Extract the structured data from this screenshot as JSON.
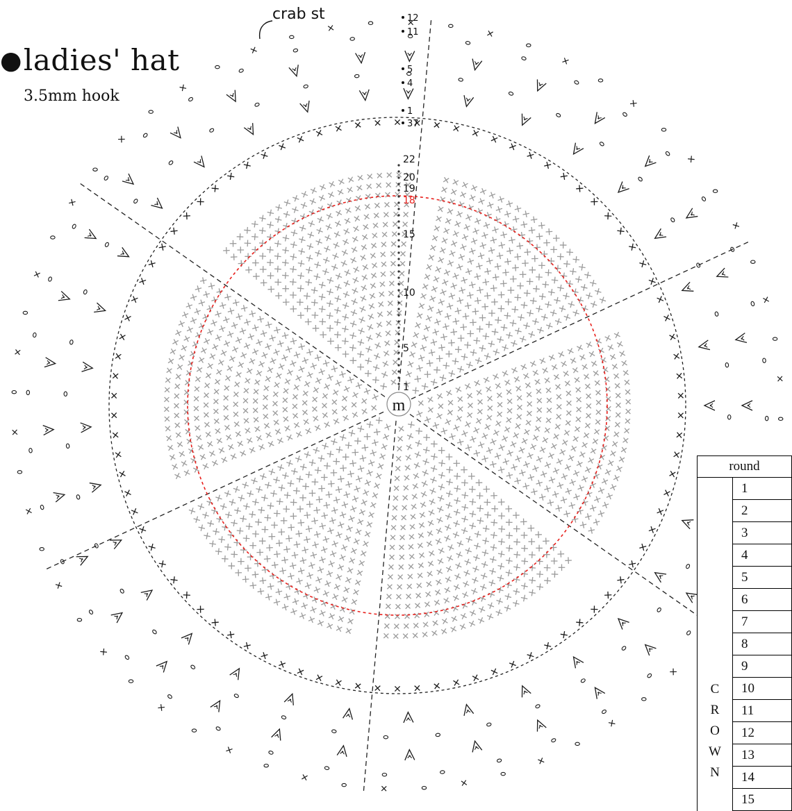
{
  "title": "ladies' hat",
  "hook": "3.5mm hook",
  "crab_label": "crab st",
  "center_mark": "m",
  "brim_round_labels": [
    "12",
    "11",
    "5",
    "4",
    "1",
    "37"
  ],
  "crown_round_labels": [
    "22",
    "20",
    "19",
    "18",
    "15",
    "10",
    "5",
    "1"
  ],
  "highlight_round": "18",
  "table": {
    "header": "round",
    "section_letters": [
      "C",
      "R",
      "O",
      "W",
      "N"
    ],
    "rounds": [
      "1",
      "2",
      "3",
      "4",
      "5",
      "6",
      "7",
      "8",
      "9",
      "10",
      "11",
      "12",
      "13",
      "14",
      "15"
    ]
  },
  "colors": {
    "ink": "#111111",
    "crown_stitch": "#9a9a9a",
    "highlight": "#e8201c"
  }
}
